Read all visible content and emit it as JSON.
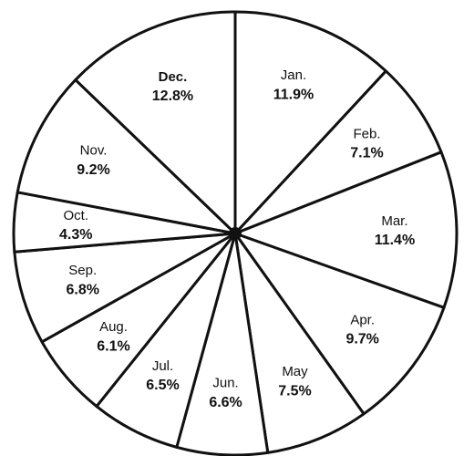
{
  "chart_data": {
    "type": "pie",
    "categories": [
      "Jan.",
      "Feb.",
      "Mar.",
      "Apr.",
      "May",
      "Jun.",
      "Jul.",
      "Aug.",
      "Sep.",
      "Oct.",
      "Nov.",
      "Dec."
    ],
    "values": [
      11.9,
      7.1,
      11.4,
      9.7,
      7.5,
      6.6,
      6.5,
      6.1,
      6.8,
      4.3,
      9.2,
      12.8
    ],
    "value_labels": [
      "11.9%",
      "7.1%",
      "11.4%",
      "9.7%",
      "7.5%",
      "6.6%",
      "6.5%",
      "6.1%",
      "6.8%",
      "4.3%",
      "9.2%",
      "12.8%"
    ],
    "color": "#ffffff"
  }
}
